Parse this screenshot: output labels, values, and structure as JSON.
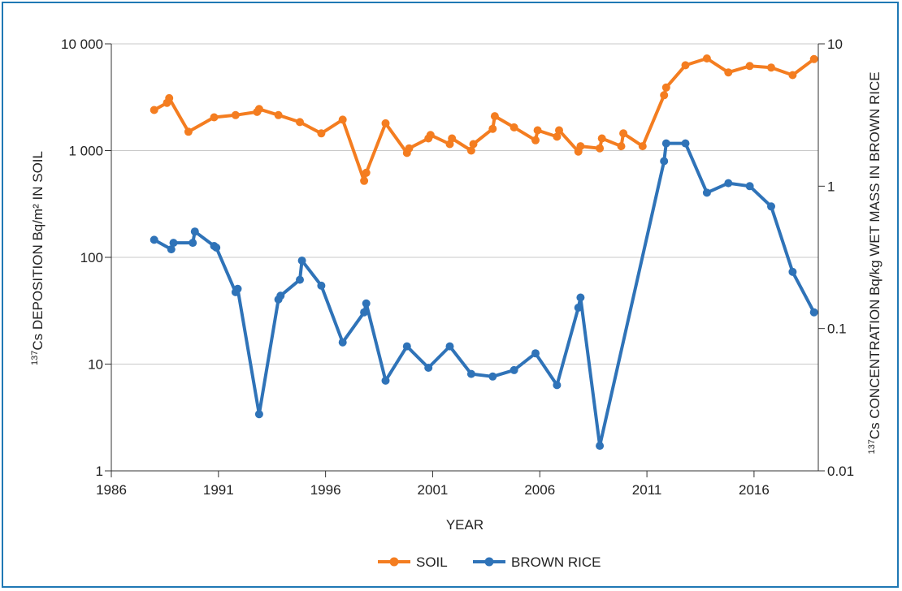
{
  "chart_data": {
    "type": "line",
    "xlabel": "YEAR",
    "ylabel_left": "137Cs DEPOSITION Bq/m² IN SOIL",
    "ylabel_left_sup": "137",
    "ylabel_left_rest": "Cs DEPOSITION Bq/m² IN SOIL",
    "ylabel_right": "137Cs CONCENTRATION Bq/kg WET MASS IN BROWN RICE",
    "ylabel_right_sup": "137",
    "ylabel_right_rest": "Cs CONCENTRATION Bq/kg WET MASS IN BROWN RICE",
    "x_range": [
      1986,
      2019
    ],
    "x_ticks": [
      1986,
      1991,
      1996,
      2001,
      2006,
      2011,
      2016
    ],
    "y_left_scale": "log",
    "y_left_range": [
      1,
      10000
    ],
    "y_left_ticks": [
      1,
      10,
      100,
      1000,
      10000
    ],
    "y_left_tick_labels": [
      "1",
      "10",
      "100",
      "1 000",
      "10 000"
    ],
    "y_right_scale": "log",
    "y_right_range": [
      0.01,
      10
    ],
    "y_right_ticks": [
      0.01,
      0.1,
      1,
      10
    ],
    "y_right_tick_labels": [
      "0.01",
      "0.1",
      "1",
      "10"
    ],
    "grid": "horizontal",
    "legend_position": "bottom-center",
    "series": [
      {
        "name": "SOIL",
        "axis": "left",
        "color": "#f47d20",
        "x": [
          1988,
          1988.6,
          1988.7,
          1989.6,
          1990.8,
          1991.8,
          1992.8,
          1992.9,
          1993.8,
          1994.8,
          1995.8,
          1996.8,
          1997.8,
          1997.9,
          1998.8,
          1999.8,
          1999.9,
          2000.8,
          2000.9,
          2001.8,
          2001.9,
          2002.8,
          2002.9,
          2003.8,
          2003.9,
          2004.8,
          2005.8,
          2005.9,
          2006.8,
          2006.9,
          2007.8,
          2007.9,
          2008.8,
          2008.9,
          2009.8,
          2009.9,
          2010.8,
          2011.8,
          2011.9,
          2012.8,
          2013.8,
          2014.8,
          2015.8,
          2016.8,
          2017.8,
          2018.8
        ],
        "y": [
          2400,
          2800,
          3100,
          1500,
          2050,
          2150,
          2300,
          2450,
          2150,
          1850,
          1450,
          1950,
          520,
          620,
          1800,
          950,
          1050,
          1300,
          1400,
          1150,
          1300,
          1000,
          1150,
          1600,
          2100,
          1650,
          1250,
          1550,
          1350,
          1550,
          980,
          1100,
          1050,
          1300,
          1100,
          1450,
          1100,
          3300,
          3900,
          6300,
          7300,
          5400,
          6200,
          6000,
          5100,
          7200
        ]
      },
      {
        "name": "BROWN RICE",
        "axis": "right",
        "color": "#2f73b8",
        "x": [
          1988,
          1988.8,
          1988.9,
          1989.8,
          1989.9,
          1990.8,
          1990.9,
          1991.8,
          1991.9,
          1992.9,
          1993.8,
          1993.9,
          1994.8,
          1994.9,
          1995.8,
          1996.8,
          1997.8,
          1997.9,
          1998.8,
          1999.8,
          2000.8,
          2001.8,
          2002.8,
          2003.8,
          2004.8,
          2005.8,
          2006.8,
          2007.8,
          2007.9,
          2008.8,
          2011.8,
          2011.9,
          2012.8,
          2013.8,
          2014.8,
          2015.8,
          2016.8,
          2017.8,
          2018.8
        ],
        "y": [
          0.42,
          0.36,
          0.4,
          0.4,
          0.48,
          0.38,
          0.37,
          0.18,
          0.19,
          0.025,
          0.16,
          0.17,
          0.22,
          0.3,
          0.2,
          0.08,
          0.13,
          0.15,
          0.043,
          0.075,
          0.053,
          0.075,
          0.048,
          0.046,
          0.051,
          0.067,
          0.04,
          0.14,
          0.165,
          0.015,
          1.5,
          2.0,
          2.0,
          0.9,
          1.05,
          1.0,
          0.72,
          0.25,
          0.13
        ]
      }
    ]
  },
  "legend": [
    {
      "label": "SOIL",
      "color": "#f47d20"
    },
    {
      "label": "BROWN RICE",
      "color": "#2f73b8"
    }
  ]
}
